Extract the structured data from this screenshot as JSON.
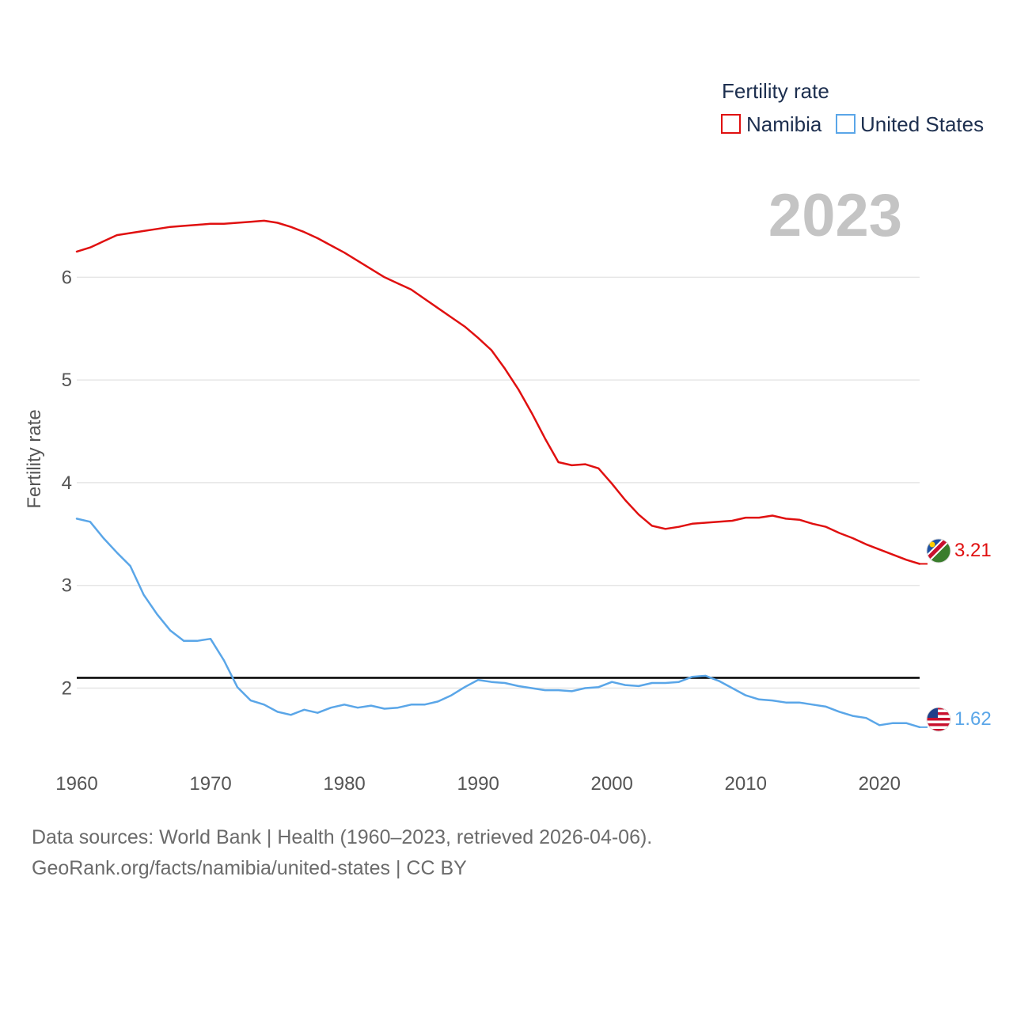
{
  "chart_data": {
    "type": "line",
    "title": "Fertility rate",
    "ylabel": "Fertility rate",
    "xlabel": "",
    "year_label": "2023",
    "xlim": [
      1960,
      2023
    ],
    "ylim": [
      1.38,
      6.85
    ],
    "x_ticks": [
      1960,
      1970,
      1980,
      1990,
      2000,
      2010,
      2020
    ],
    "y_ticks": [
      2,
      3,
      4,
      5,
      6
    ],
    "reference_line": 2.1,
    "legend": {
      "title": "Fertility rate",
      "placement": "top-right"
    },
    "x": [
      1960,
      1961,
      1962,
      1963,
      1964,
      1965,
      1966,
      1967,
      1968,
      1969,
      1970,
      1971,
      1972,
      1973,
      1974,
      1975,
      1976,
      1977,
      1978,
      1979,
      1980,
      1981,
      1982,
      1983,
      1984,
      1985,
      1986,
      1987,
      1988,
      1989,
      1990,
      1991,
      1992,
      1993,
      1994,
      1995,
      1996,
      1997,
      1998,
      1999,
      2000,
      2001,
      2002,
      2003,
      2004,
      2005,
      2006,
      2007,
      2008,
      2009,
      2010,
      2011,
      2012,
      2013,
      2014,
      2015,
      2016,
      2017,
      2018,
      2019,
      2020,
      2021,
      2022,
      2023
    ],
    "series": [
      {
        "name": "Namibia",
        "color": "#e01010",
        "end_label": "3.21",
        "flag": "namibia-flag-icon",
        "values": [
          6.25,
          6.29,
          6.35,
          6.41,
          6.43,
          6.45,
          6.47,
          6.49,
          6.5,
          6.51,
          6.52,
          6.52,
          6.53,
          6.54,
          6.55,
          6.53,
          6.49,
          6.44,
          6.38,
          6.31,
          6.24,
          6.16,
          6.08,
          6.0,
          5.94,
          5.88,
          5.79,
          5.7,
          5.61,
          5.52,
          5.41,
          5.29,
          5.11,
          4.91,
          4.68,
          4.43,
          4.2,
          4.17,
          4.18,
          4.14,
          3.99,
          3.83,
          3.69,
          3.58,
          3.55,
          3.57,
          3.6,
          3.61,
          3.62,
          3.63,
          3.66,
          3.66,
          3.68,
          3.65,
          3.64,
          3.6,
          3.57,
          3.51,
          3.46,
          3.4,
          3.35,
          3.3,
          3.25,
          3.21
        ]
      },
      {
        "name": "United States",
        "color": "#5aa6e8",
        "end_label": "1.62",
        "flag": "united-states-flag-icon",
        "values": [
          3.65,
          3.62,
          3.46,
          3.32,
          3.19,
          2.91,
          2.72,
          2.56,
          2.46,
          2.46,
          2.48,
          2.27,
          2.01,
          1.88,
          1.84,
          1.77,
          1.74,
          1.79,
          1.76,
          1.81,
          1.84,
          1.81,
          1.83,
          1.8,
          1.81,
          1.84,
          1.84,
          1.87,
          1.93,
          2.01,
          2.08,
          2.06,
          2.05,
          2.02,
          2.0,
          1.98,
          1.98,
          1.97,
          2.0,
          2.01,
          2.06,
          2.03,
          2.02,
          2.05,
          2.05,
          2.06,
          2.11,
          2.12,
          2.07,
          2.0,
          1.93,
          1.89,
          1.88,
          1.86,
          1.86,
          1.84,
          1.82,
          1.77,
          1.73,
          1.71,
          1.64,
          1.66,
          1.66,
          1.62
        ]
      }
    ]
  },
  "source": {
    "line1": "Data sources: World Bank | Health (1960–2023, retrieved 2026-04-06).",
    "line2": "GeoRank.org/facts/namibia/united-states | CC BY"
  },
  "colors": {
    "grid": "#e6e6e6",
    "reference": "#000000",
    "year": "#c4c4c4"
  }
}
